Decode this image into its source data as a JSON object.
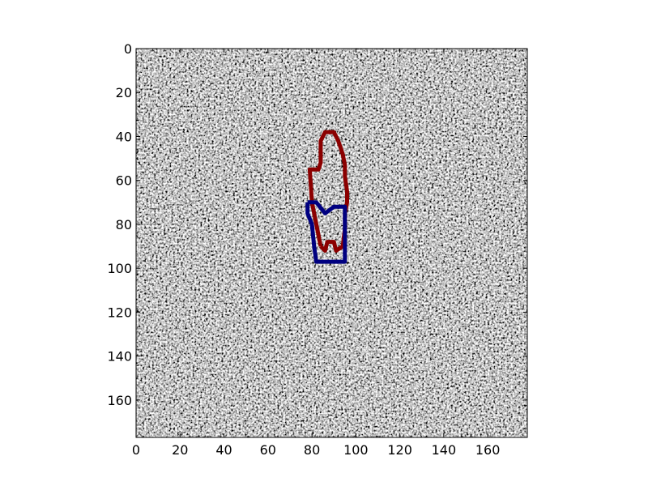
{
  "chart_data": {
    "type": "heatmap",
    "image": "grayscale speckle noise image",
    "x_ticks": [
      "0",
      "20",
      "40",
      "60",
      "80",
      "100",
      "120",
      "140",
      "160"
    ],
    "x_tick_values": [
      0,
      20,
      40,
      60,
      80,
      100,
      120,
      140,
      160
    ],
    "y_ticks": [
      "0",
      "20",
      "40",
      "60",
      "80",
      "100",
      "120",
      "140",
      "160"
    ],
    "y_tick_values": [
      0,
      20,
      40,
      60,
      80,
      100,
      120,
      140,
      160
    ],
    "xlim": [
      0,
      178
    ],
    "ylim": [
      177,
      0
    ],
    "grid": false,
    "series": [
      {
        "color": "#8b0000",
        "points": [
          [
            84,
            90
          ],
          [
            80,
            70
          ],
          [
            79,
            55
          ],
          [
            83,
            55
          ],
          [
            84,
            52
          ],
          [
            84,
            42
          ],
          [
            86,
            38
          ],
          [
            90,
            38
          ],
          [
            92,
            42
          ],
          [
            94,
            48
          ],
          [
            95,
            53
          ],
          [
            95,
            58
          ],
          [
            96,
            65
          ],
          [
            96,
            70
          ],
          [
            95,
            75
          ],
          [
            95,
            82
          ],
          [
            94,
            90
          ],
          [
            91,
            92
          ],
          [
            90,
            88
          ],
          [
            87,
            88
          ],
          [
            86,
            92
          ],
          [
            84,
            90
          ]
        ]
      },
      {
        "color": "#000080",
        "points": [
          [
            78,
            70
          ],
          [
            82,
            70
          ],
          [
            86,
            75
          ],
          [
            90,
            72
          ],
          [
            95,
            72
          ],
          [
            95,
            80
          ],
          [
            95,
            90
          ],
          [
            95,
            97
          ],
          [
            82,
            97
          ],
          [
            81,
            90
          ],
          [
            80,
            80
          ],
          [
            78,
            75
          ],
          [
            78,
            70
          ]
        ]
      }
    ]
  }
}
